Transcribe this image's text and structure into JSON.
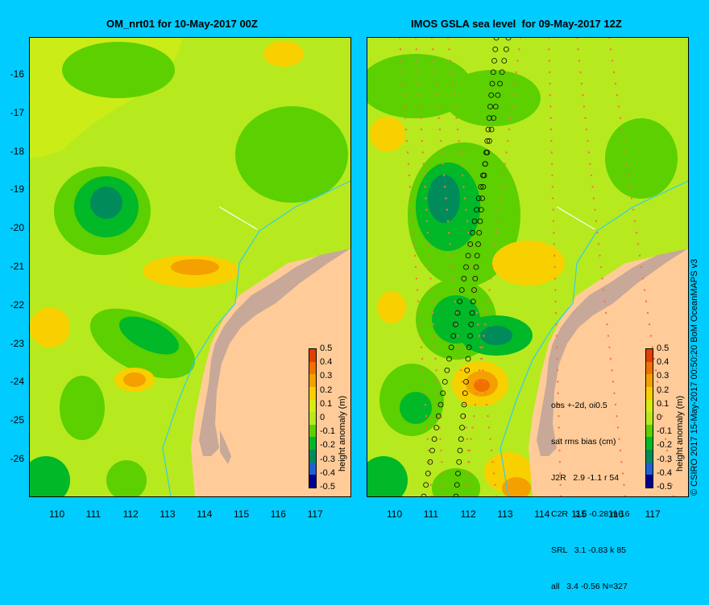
{
  "left_panel": {
    "title": "OM_nrt01 for 10-May-2017 00Z"
  },
  "right_panel": {
    "title": "IMOS GSLA sea level  for 09-May-2017 12Z"
  },
  "axes": {
    "y_ticks": [
      "-16",
      "-17",
      "-18",
      "-19",
      "-20",
      "-21",
      "-22",
      "-23",
      "-24",
      "-25",
      "-26"
    ],
    "x_ticks": [
      "110",
      "111",
      "112",
      "113",
      "114",
      "115",
      "116",
      "117"
    ]
  },
  "colorbar": {
    "title": "height anomaly (m)",
    "ticks": [
      "0.5",
      "0.4",
      "0.3",
      "0.2",
      "0.1",
      "0",
      "-0.1",
      "-0.2",
      "-0.3",
      "-0.4",
      "-0.5"
    ],
    "colors": [
      "#e04000",
      "#f07000",
      "#f4a000",
      "#f8d000",
      "#d8ec10",
      "#b6ea1e",
      "#5cd000",
      "#00b828",
      "#008c5a",
      "#2060d0",
      "#000090"
    ]
  },
  "stats": {
    "line1": "obs +-2d, oi0.5",
    "line2": "sat rms bias (cm)",
    "line3": "J2R   2.9 -1.1 r 54",
    "line4": "C2R   3.6 -0.28 m 16",
    "line5": "SRL   3.1 -0.83 k 85",
    "line6": "all   3.4 -0.56 N=327"
  },
  "credit": "© CSIRO 2017  15-May-2017 00:50:20 BoM OceanMAPS v3",
  "map_colors": {
    "land": "#ffcc99",
    "coast": "#c8a898",
    "river": "#33ccee"
  }
}
